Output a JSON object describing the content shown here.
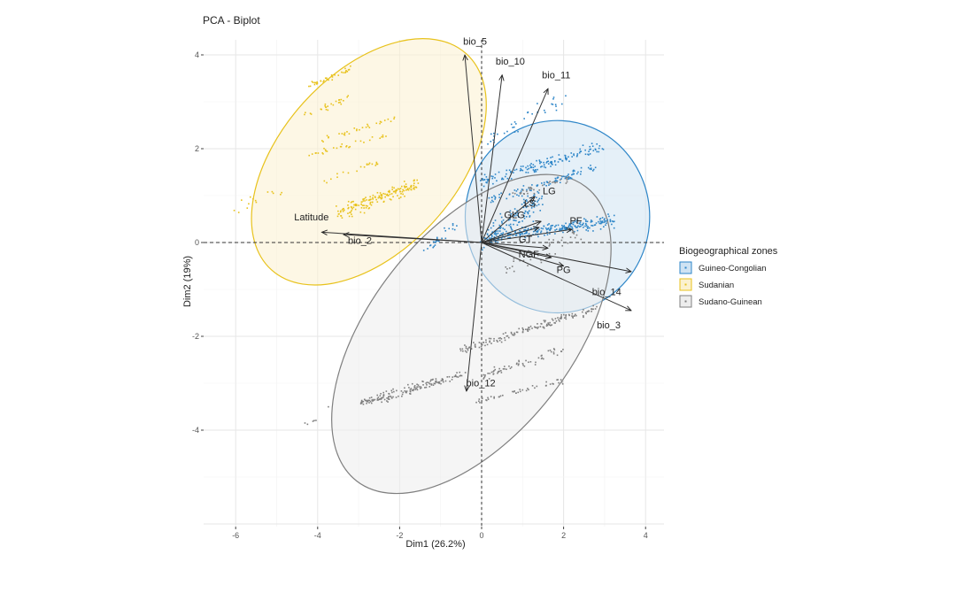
{
  "chart_data": {
    "type": "scatter",
    "subtype": "pca-biplot",
    "title": "PCA - Biplot",
    "xlabel": "Dim1 (26.2%)",
    "ylabel": "Dim2 (19%)",
    "xlim": [
      -6.6,
      4.5
    ],
    "ylim": [
      -6.0,
      4.3
    ],
    "xticks": [
      -6,
      -4,
      -2,
      0,
      2,
      4
    ],
    "yticks": [
      4,
      2,
      0,
      -2,
      -4
    ],
    "grid": true,
    "legend": {
      "title": "Biogeographical zones",
      "position": "right",
      "entries": [
        "Guineo-Congolian",
        "Sudanian",
        "Sudano-Guinean"
      ]
    },
    "groups": [
      {
        "name": "Guineo-Congolian",
        "color": "#2E86C8",
        "fill": "#CFE3F3",
        "ellipse": {
          "center": [
            1.85,
            0.55
          ],
          "rx": 2.25,
          "ry": 2.05,
          "angle": 0
        },
        "clusters": [
          {
            "from": [
              0.0,
              1.3
            ],
            "to": [
              3.0,
              2.05
            ],
            "n": 140,
            "spread": 0.12
          },
          {
            "from": [
              0.2,
              0.9
            ],
            "to": [
              2.8,
              1.6
            ],
            "n": 90,
            "spread": 0.1
          },
          {
            "from": [
              0.0,
              0.1
            ],
            "to": [
              3.2,
              0.45
            ],
            "n": 260,
            "spread": 0.12
          },
          {
            "from": [
              0.0,
              0.0
            ],
            "to": [
              1.5,
              1.0
            ],
            "n": 120,
            "spread": 0.25
          },
          {
            "from": [
              0.2,
              2.2
            ],
            "to": [
              2.0,
              3.1
            ],
            "n": 35,
            "spread": 0.15
          },
          {
            "from": [
              -1.4,
              -0.2
            ],
            "to": [
              -0.6,
              0.4
            ],
            "n": 25,
            "spread": 0.12
          }
        ]
      },
      {
        "name": "Sudanian",
        "color": "#E8C21C",
        "fill": "#FBF1CF",
        "ellipse": {
          "center": [
            -2.75,
            1.72
          ],
          "rx": 3.55,
          "ry": 1.88,
          "angle": -48
        },
        "clusters": [
          {
            "from": [
              -4.2,
              3.35
            ],
            "to": [
              -3.2,
              3.7
            ],
            "n": 35,
            "spread": 0.06
          },
          {
            "from": [
              -4.4,
              2.7
            ],
            "to": [
              -3.2,
              3.1
            ],
            "n": 25,
            "spread": 0.08
          },
          {
            "from": [
              -3.9,
              2.2
            ],
            "to": [
              -2.1,
              2.65
            ],
            "n": 30,
            "spread": 0.06
          },
          {
            "from": [
              -4.5,
              1.8
            ],
            "to": [
              -2.3,
              2.3
            ],
            "n": 30,
            "spread": 0.06
          },
          {
            "from": [
              -3.9,
              1.3
            ],
            "to": [
              -2.5,
              1.7
            ],
            "n": 20,
            "spread": 0.06
          },
          {
            "from": [
              -3.5,
              0.6
            ],
            "to": [
              -1.6,
              1.25
            ],
            "n": 170,
            "spread": 0.14
          },
          {
            "from": [
              -6.0,
              0.7
            ],
            "to": [
              -4.8,
              1.2
            ],
            "n": 14,
            "spread": 0.15
          }
        ]
      },
      {
        "name": "Sudano-Guinean",
        "color": "#7F7F7F",
        "fill": "#EDEDED",
        "ellipse": {
          "center": [
            -0.25,
            -1.95
          ],
          "rx": 4.55,
          "ry": 2.15,
          "angle": -52
        },
        "clusters": [
          {
            "from": [
              -0.5,
              -2.3
            ],
            "to": [
              2.8,
              -1.4
            ],
            "n": 150,
            "spread": 0.08
          },
          {
            "from": [
              -3.0,
              -3.45
            ],
            "to": [
              -0.4,
              -2.8
            ],
            "n": 160,
            "spread": 0.1
          },
          {
            "from": [
              0.0,
              -2.85
            ],
            "to": [
              2.0,
              -2.3
            ],
            "n": 60,
            "spread": 0.08
          },
          {
            "from": [
              -0.3,
              -3.4
            ],
            "to": [
              2.0,
              -2.95
            ],
            "n": 45,
            "spread": 0.06
          },
          {
            "from": [
              0.6,
              1.0
            ],
            "to": [
              2.3,
              1.4
            ],
            "n": 30,
            "spread": 0.08
          },
          {
            "from": [
              0.5,
              -0.6
            ],
            "to": [
              2.5,
              0.2
            ],
            "n": 40,
            "spread": 0.2
          },
          {
            "from": [
              -4.5,
              -4.0
            ],
            "to": [
              -3.7,
              -3.5
            ],
            "n": 6,
            "spread": 0.15
          }
        ]
      }
    ],
    "variables": [
      {
        "name": "bio_5",
        "x": -0.41,
        "y": 4.0,
        "label_dx": 0.25,
        "label_dy": 0.22
      },
      {
        "name": "bio_10",
        "x": 0.5,
        "y": 3.57,
        "label_dx": 0.2,
        "label_dy": 0.22
      },
      {
        "name": "bio_11",
        "x": 1.62,
        "y": 3.28,
        "label_dx": 0.2,
        "label_dy": 0.22
      },
      {
        "name": "LS",
        "x": 1.3,
        "y": 0.98,
        "label_dx": -0.12,
        "label_dy": -0.22
      },
      {
        "name": "LG",
        "x": 1.45,
        "y": 0.45,
        "label_dx": 0.2,
        "label_dy": 0.58
      },
      {
        "name": "GLG",
        "x": 1.4,
        "y": 0.32,
        "label_dx": -0.6,
        "label_dy": 0.2
      },
      {
        "name": "PF",
        "x": 2.2,
        "y": 0.28,
        "label_dx": 0.1,
        "label_dy": 0.12
      },
      {
        "name": "GT",
        "x": 1.62,
        "y": -0.12,
        "label_dx": -0.55,
        "label_dy": 0.12
      },
      {
        "name": "NGF",
        "x": 1.7,
        "y": -0.32,
        "label_dx": -0.55,
        "label_dy": 0.0
      },
      {
        "name": "PG",
        "x": 2.0,
        "y": -0.5,
        "label_dx": 0.0,
        "label_dy": -0.15
      },
      {
        "name": "bio_14",
        "x": 3.65,
        "y": -0.62,
        "label_dx": -0.6,
        "label_dy": -0.5
      },
      {
        "name": "bio_3",
        "x": 3.65,
        "y": -1.45,
        "label_dx": -0.55,
        "label_dy": -0.38
      },
      {
        "name": "bio_12",
        "x": -0.37,
        "y": -3.17,
        "label_dx": 0.35,
        "label_dy": 0.1
      },
      {
        "name": "Latitude",
        "x": -3.9,
        "y": 0.22,
        "label_dx": -0.25,
        "label_dy": 0.25
      },
      {
        "name": "bio_2",
        "x": -3.37,
        "y": 0.17,
        "label_dx": 0.4,
        "label_dy": -0.2
      }
    ]
  }
}
